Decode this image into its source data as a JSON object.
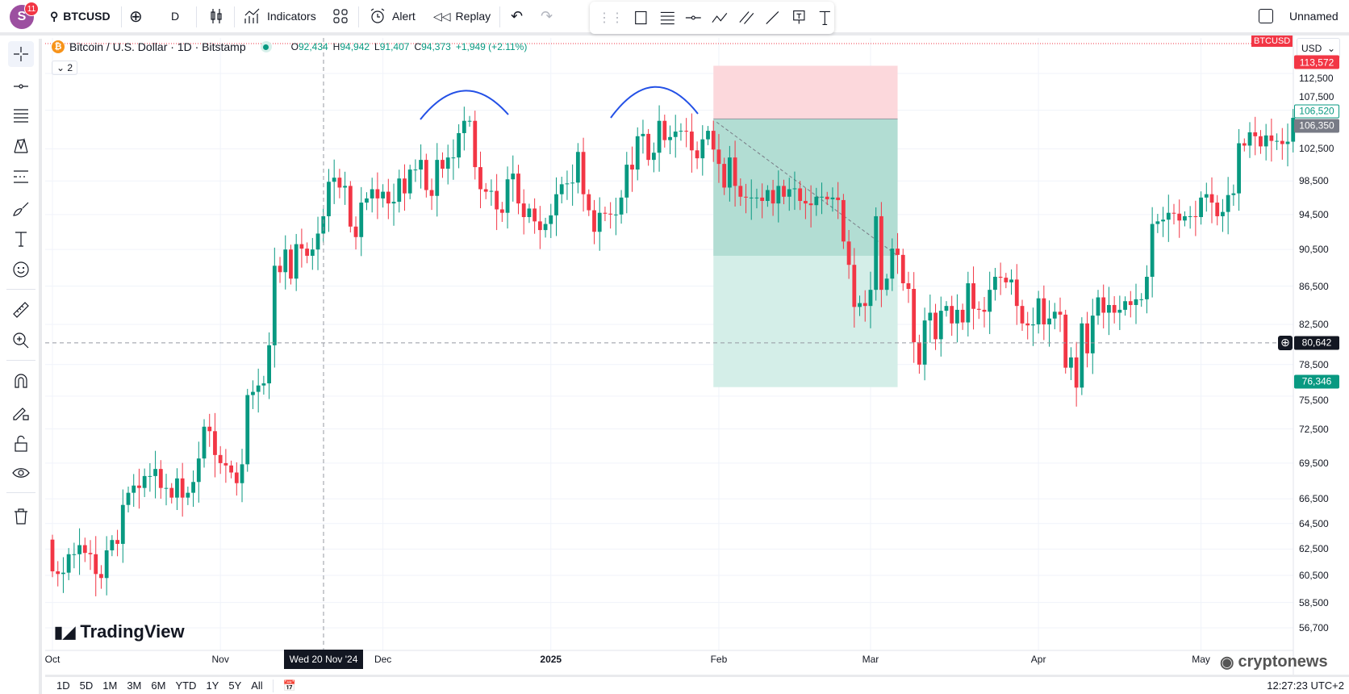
{
  "header": {
    "avatar_letter": "S",
    "notifications": "11",
    "symbol": "BTCUSD",
    "interval": "D",
    "indicators_label": "Indicators",
    "alert_label": "Alert",
    "replay_label": "Replay",
    "layout_name": "Unnamed"
  },
  "legend": {
    "title": "Bitcoin / U.S. Dollar · 1D · Bitstamp",
    "coin_glyph": "₿",
    "open_label": "O",
    "open": "92,434",
    "high_label": "H",
    "high": "94,942",
    "low_label": "L",
    "low": "91,407",
    "close_label": "C",
    "close": "94,373",
    "change": "+1,949 (+2.11%)",
    "collapse_count": "2"
  },
  "price_axis": {
    "currency": "USD",
    "symbol_tag": "BTCUSD",
    "scale": "log",
    "labels": [
      "112,500",
      "107,500",
      "102,500",
      "98,500",
      "94,500",
      "90,500",
      "86,500",
      "82,500",
      "78,500",
      "75,500",
      "72,500",
      "69,500",
      "66,500",
      "64,500",
      "62,500",
      "60,500",
      "58,500",
      "56,700"
    ],
    "tags": {
      "stop": "113,572",
      "current": "106,520",
      "entry": "106,350",
      "crosshair": "80,642",
      "target": "76,346"
    }
  },
  "time_axis": {
    "labels": [
      {
        "text": "Oct",
        "date": "2024-10-01"
      },
      {
        "text": "Nov",
        "date": "2024-11-01"
      },
      {
        "text": "Dec",
        "date": "2024-12-01"
      },
      {
        "text": "2025",
        "date": "2025-01-01"
      },
      {
        "text": "Feb",
        "date": "2025-02-01"
      },
      {
        "text": "Mar",
        "date": "2025-03-01"
      },
      {
        "text": "Apr",
        "date": "2025-04-01"
      },
      {
        "text": "May",
        "date": "2025-05-01"
      }
    ],
    "crosshair_label": "Wed 20 Nov '24"
  },
  "bottom_bar": {
    "ranges": [
      "1D",
      "5D",
      "1M",
      "3M",
      "6M",
      "YTD",
      "1Y",
      "5Y",
      "All"
    ],
    "clock": "12:27:23 UTC+2"
  },
  "watermarks": {
    "tradingview": "TradingView",
    "cryptonews": "cryptonews"
  },
  "colors": {
    "up": "#089981",
    "down": "#f23645",
    "arc": "#2350e6",
    "stop_zone": "#fcd8dc",
    "target_zone": "#b2ddd3",
    "target_zone_light": "#d4eee8"
  },
  "chart_data": {
    "type": "candlestick",
    "start_date": "2024-10-01",
    "interval": "1D",
    "price_range": [
      56700,
      112500
    ],
    "closes": [
      60800,
      60600,
      60700,
      62100,
      62100,
      62800,
      62200,
      62100,
      60600,
      60300,
      62400,
      63200,
      62900,
      66000,
      67000,
      67600,
      67400,
      68400,
      68400,
      69000,
      67400,
      67400,
      66600,
      68200,
      66600,
      67000,
      67900,
      69900,
      72700,
      72300,
      70200,
      69500,
      69300,
      68700,
      67800,
      69400,
      75600,
      75900,
      76500,
      76700,
      80400,
      88700,
      88000,
      90500,
      87300,
      91100,
      90600,
      89800,
      90500,
      92300,
      94300,
      98400,
      98900,
      97700,
      97900,
      93100,
      91900,
      95900,
      96400,
      97500,
      96400,
      97200,
      95800,
      96000,
      98800,
      97000,
      99900,
      99900,
      101100,
      97400,
      96700,
      101100,
      100000,
      101400,
      101400,
      104500,
      106100,
      106100,
      100200,
      97500,
      97200,
      97300,
      95100,
      94700,
      98700,
      99400,
      95800,
      94200,
      95200,
      93700,
      92700,
      93400,
      94400,
      96900,
      98100,
      98200,
      98300,
      102100,
      96900,
      95000,
      92500,
      94700,
      94600,
      94500,
      94500,
      96500,
      100500,
      99900,
      104100,
      104400,
      101100,
      102000,
      106100,
      103600,
      104000,
      104700,
      104800,
      104700,
      102300,
      101300,
      103700,
      104800,
      102400,
      100600,
      97700,
      101400,
      97900,
      96600,
      96500,
      96500,
      96500,
      96100,
      97400,
      95800,
      97900,
      96600,
      97500,
      97600,
      96100,
      95800,
      95600,
      96600,
      96600,
      96300,
      96500,
      96200,
      91400,
      88800,
      84300,
      84700,
      84400,
      86100,
      94300,
      86100,
      87300,
      90600,
      89900,
      86800,
      86200,
      80700,
      78500,
      82900,
      83700,
      81000,
      83900,
      84400,
      82600,
      84000,
      82700,
      86800,
      84100,
      84000,
      83800,
      86100,
      87500,
      87400,
      86900,
      87200,
      84400,
      82600,
      82400,
      82500,
      85200,
      82500,
      83100,
      83800,
      83500,
      78200,
      79200,
      76300,
      82600,
      79600,
      83400,
      85300,
      83700,
      84500,
      83700,
      84000,
      84900,
      84500,
      85100,
      85100,
      87500,
      93400,
      93700,
      93900,
      94700,
      94600,
      93800,
      94300,
      94300,
      94200,
      96500,
      96900,
      95900,
      94300,
      94800,
      96800,
      97000,
      103200,
      102900,
      104600,
      104100,
      102800,
      104200,
      103500,
      103500,
      103100,
      103400,
      106500
    ],
    "position": {
      "entry": 106350,
      "stop": 113572,
      "target": 76346,
      "start_date": "2025-01-31",
      "end_date": "2025-03-06"
    }
  }
}
